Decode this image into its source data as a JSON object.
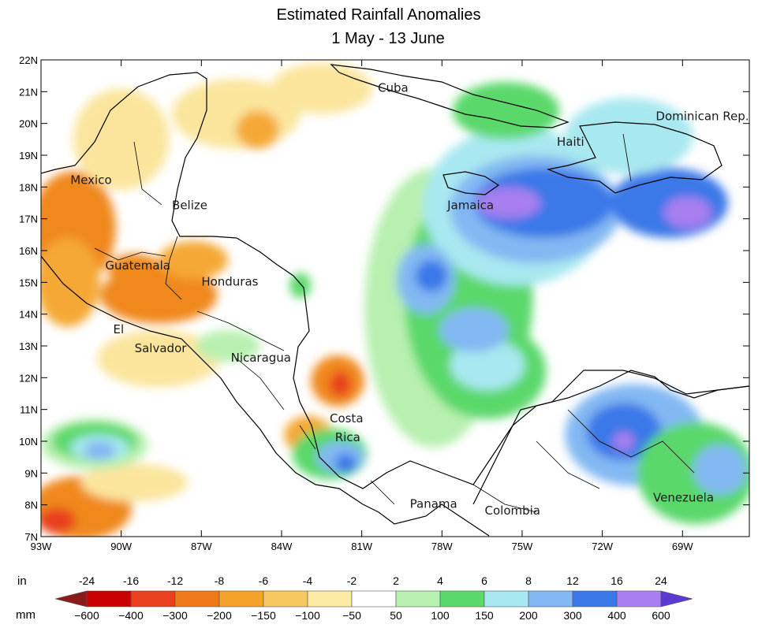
{
  "title": {
    "line1": "Estimated Rainfall Anomalies",
    "line2": "1 May - 13 June"
  },
  "map": {
    "extent": {
      "lon": [
        -93,
        -66.5
      ],
      "lat": [
        7,
        22
      ]
    },
    "lat_ticks": [
      {
        "value": 22,
        "label": "22N"
      },
      {
        "value": 21,
        "label": "21N"
      },
      {
        "value": 20,
        "label": "20N"
      },
      {
        "value": 19,
        "label": "19N"
      },
      {
        "value": 18,
        "label": "18N"
      },
      {
        "value": 17,
        "label": "17N"
      },
      {
        "value": 16,
        "label": "16N"
      },
      {
        "value": 15,
        "label": "15N"
      },
      {
        "value": 14,
        "label": "14N"
      },
      {
        "value": 13,
        "label": "13N"
      },
      {
        "value": 12,
        "label": "12N"
      },
      {
        "value": 11,
        "label": "11N"
      },
      {
        "value": 10,
        "label": "10N"
      },
      {
        "value": 9,
        "label": "9N"
      },
      {
        "value": 8,
        "label": "8N"
      },
      {
        "value": 7,
        "label": "7N"
      }
    ],
    "lon_ticks": [
      {
        "value": -93,
        "label": "93W"
      },
      {
        "value": -90,
        "label": "90W"
      },
      {
        "value": -87,
        "label": "87W"
      },
      {
        "value": -84,
        "label": "84W"
      },
      {
        "value": -81,
        "label": "81W"
      },
      {
        "value": -78,
        "label": "78W"
      },
      {
        "value": -75,
        "label": "75W"
      },
      {
        "value": -72,
        "label": "72W"
      },
      {
        "value": -69,
        "label": "69W"
      }
    ],
    "place_labels": [
      {
        "text": "Cuba",
        "lon": -80.4,
        "lat": 21.0
      },
      {
        "text": "Dominican Rep.",
        "lon": -70.0,
        "lat": 20.1
      },
      {
        "text": "Haiti",
        "lon": -73.7,
        "lat": 19.3
      },
      {
        "text": "Mexico",
        "lon": -91.9,
        "lat": 18.1
      },
      {
        "text": "Belize",
        "lon": -88.1,
        "lat": 17.3
      },
      {
        "text": "Jamaica",
        "lon": -77.8,
        "lat": 17.3
      },
      {
        "text": "Guatemala",
        "lon": -90.6,
        "lat": 15.4
      },
      {
        "text": "Honduras",
        "lon": -87.0,
        "lat": 14.9
      },
      {
        "text": "El",
        "lon": -90.3,
        "lat": 13.4
      },
      {
        "text": "Salvador",
        "lon": -89.5,
        "lat": 12.8
      },
      {
        "text": "Nicaragua",
        "lon": -85.9,
        "lat": 12.5
      },
      {
        "text": "Costa",
        "lon": -82.2,
        "lat": 10.6
      },
      {
        "text": "Rica",
        "lon": -82.0,
        "lat": 10.0
      },
      {
        "text": "Panama",
        "lon": -79.2,
        "lat": 7.9
      },
      {
        "text": "Colombia",
        "lon": -76.4,
        "lat": 7.7
      },
      {
        "text": "Venezuela",
        "lon": -70.1,
        "lat": 8.1
      }
    ],
    "anomaly_fields": [
      {
        "category": "-200 to -150",
        "lon": -91.8,
        "lat": 16.7,
        "rx": 1.6,
        "ry": 1.8
      },
      {
        "category": "-150 to -100",
        "lon": -92.0,
        "lat": 15.0,
        "rx": 1.2,
        "ry": 1.4
      },
      {
        "category": "-100 to -50",
        "lon": -90.0,
        "lat": 19.5,
        "rx": 1.8,
        "ry": 1.6
      },
      {
        "category": "-200 to -150",
        "lon": -88.6,
        "lat": 14.6,
        "rx": 2.2,
        "ry": 0.9
      },
      {
        "category": "-150 to -100",
        "lon": -87.3,
        "lat": 15.7,
        "rx": 1.3,
        "ry": 0.6
      },
      {
        "category": "-200 to -150",
        "lon": -89.5,
        "lat": 15.4,
        "rx": 1.0,
        "ry": 0.5
      },
      {
        "category": "-100 to -50",
        "lon": -85.7,
        "lat": 20.3,
        "rx": 2.4,
        "ry": 1.1
      },
      {
        "category": "-100 to -50",
        "lon": -82.5,
        "lat": 21.1,
        "rx": 1.9,
        "ry": 0.8
      },
      {
        "category": "-150 to -100",
        "lon": -84.9,
        "lat": 19.8,
        "rx": 0.8,
        "ry": 0.6
      },
      {
        "category": "-200 to -150",
        "lon": -81.9,
        "lat": 11.9,
        "rx": 1.0,
        "ry": 0.8
      },
      {
        "category": "-300 to -200",
        "lon": -81.8,
        "lat": 11.8,
        "rx": 0.4,
        "ry": 0.4
      },
      {
        "category": "-200 to -150",
        "lon": -91.5,
        "lat": 7.9,
        "rx": 1.9,
        "ry": 1.0
      },
      {
        "category": "-300 to -200",
        "lon": -92.4,
        "lat": 7.5,
        "rx": 0.7,
        "ry": 0.4
      },
      {
        "category": "-150 to -100",
        "lon": -83.0,
        "lat": 10.2,
        "rx": 0.9,
        "ry": 0.6
      },
      {
        "category": "-100 to -50",
        "lon": -88.6,
        "lat": 12.6,
        "rx": 2.3,
        "ry": 0.9
      },
      {
        "category": "-100 to -50",
        "lon": -89.5,
        "lat": 8.7,
        "rx": 2.0,
        "ry": 0.6
      },
      {
        "category": "50 to 100",
        "lon": -78.3,
        "lat": 14.2,
        "rx": 2.6,
        "ry": 4.4
      },
      {
        "category": "100 to 150",
        "lon": -77.0,
        "lat": 14.5,
        "rx": 2.4,
        "ry": 3.5
      },
      {
        "category": "150 to 200",
        "lon": -75.2,
        "lat": 17.4,
        "rx": 3.5,
        "ry": 2.5
      },
      {
        "category": "200 to 300",
        "lon": -74.5,
        "lat": 17.3,
        "rx": 3.2,
        "ry": 1.7
      },
      {
        "category": "300 to 400",
        "lon": -74.2,
        "lat": 17.5,
        "rx": 2.6,
        "ry": 1.1
      },
      {
        "category": "400 to 600",
        "lon": -75.5,
        "lat": 17.5,
        "rx": 1.2,
        "ry": 0.5
      },
      {
        "category": "300 to 400",
        "lon": -69.5,
        "lat": 17.5,
        "rx": 2.2,
        "ry": 1.1
      },
      {
        "category": "400 to 600",
        "lon": -68.8,
        "lat": 17.2,
        "rx": 0.9,
        "ry": 0.5
      },
      {
        "category": "200 to 300",
        "lon": -78.6,
        "lat": 15.1,
        "rx": 1.1,
        "ry": 1.1
      },
      {
        "category": "300 to 400",
        "lon": -78.4,
        "lat": 15.2,
        "rx": 0.6,
        "ry": 0.5
      },
      {
        "category": "100 to 150",
        "lon": -75.6,
        "lat": 20.4,
        "rx": 2.0,
        "ry": 0.9
      },
      {
        "category": "150 to 200",
        "lon": -71.0,
        "lat": 19.6,
        "rx": 2.4,
        "ry": 1.2
      },
      {
        "category": "200 to 300",
        "lon": -70.8,
        "lat": 10.2,
        "rx": 2.6,
        "ry": 1.6
      },
      {
        "category": "300 to 400",
        "lon": -71.2,
        "lat": 10.3,
        "rx": 1.4,
        "ry": 0.9
      },
      {
        "category": "400 to 600",
        "lon": -71.2,
        "lat": 10.0,
        "rx": 0.4,
        "ry": 0.3
      },
      {
        "category": "100 to 150",
        "lon": -68.5,
        "lat": 9.0,
        "rx": 2.2,
        "ry": 1.6
      },
      {
        "category": "200 to 300",
        "lon": -67.6,
        "lat": 9.1,
        "rx": 1.0,
        "ry": 0.8
      },
      {
        "category": "100 to 150",
        "lon": -76.3,
        "lat": 12.2,
        "rx": 2.2,
        "ry": 1.5
      },
      {
        "category": "150 to 200",
        "lon": -76.3,
        "lat": 12.4,
        "rx": 1.4,
        "ry": 0.8
      },
      {
        "category": "200 to 300",
        "lon": -76.8,
        "lat": 13.5,
        "rx": 1.3,
        "ry": 0.7
      },
      {
        "category": "100 to 150",
        "lon": -82.2,
        "lat": 9.6,
        "rx": 1.4,
        "ry": 0.8
      },
      {
        "category": "200 to 300",
        "lon": -81.8,
        "lat": 9.5,
        "rx": 0.9,
        "ry": 0.5
      },
      {
        "category": "300 to 400",
        "lon": -81.6,
        "lat": 9.3,
        "rx": 0.4,
        "ry": 0.3
      },
      {
        "category": "50 to 100",
        "lon": -91.0,
        "lat": 9.9,
        "rx": 2.0,
        "ry": 0.8
      },
      {
        "category": "100 to 150",
        "lon": -91.0,
        "lat": 10.0,
        "rx": 1.6,
        "ry": 0.6
      },
      {
        "category": "150 to 200",
        "lon": -90.8,
        "lat": 9.8,
        "rx": 1.1,
        "ry": 0.4
      },
      {
        "category": "200 to 300",
        "lon": -90.8,
        "lat": 9.7,
        "rx": 0.6,
        "ry": 0.3
      },
      {
        "category": "50 to 100",
        "lon": -86.0,
        "lat": 13.0,
        "rx": 1.2,
        "ry": 0.5
      },
      {
        "category": "100 to 150",
        "lon": -83.3,
        "lat": 14.9,
        "rx": 0.4,
        "ry": 0.4
      }
    ],
    "labels_note_hidden": ""
  },
  "legend": {
    "unit_in": "in",
    "unit_mm": "mm",
    "in_labels": [
      "-24",
      "-16",
      "-12",
      "-8",
      "-6",
      "-4",
      "-2",
      "2",
      "4",
      "6",
      "8",
      "12",
      "16",
      "24"
    ],
    "mm_labels": [
      "−600",
      "−400",
      "−300",
      "−200",
      "−150",
      "−100",
      "−50",
      "50",
      "100",
      "150",
      "200",
      "300",
      "400",
      "600"
    ],
    "colors": [
      "#8b1a1a",
      "#c80000",
      "#e8401c",
      "#f07a1a",
      "#f5a22a",
      "#f7c860",
      "#fbeaa4",
      "#ffffff",
      "#b8f0b0",
      "#5ad86a",
      "#a8e8f0",
      "#82b8f2",
      "#3a78e8",
      "#a87ef0",
      "#5a3ad0"
    ]
  },
  "category_colors": {
    "-300 to -200": "#e8401c",
    "-200 to -150": "#f0881c",
    "-150 to -100": "#f5a836",
    "-100 to -50": "#fbe59c",
    "50 to 100": "#b8f0b0",
    "100 to 150": "#5ad86a",
    "150 to 200": "#a8e8f0",
    "200 to 300": "#82b8f2",
    "300 to 400": "#3a78e8",
    "400 to 600": "#a87ef0"
  }
}
